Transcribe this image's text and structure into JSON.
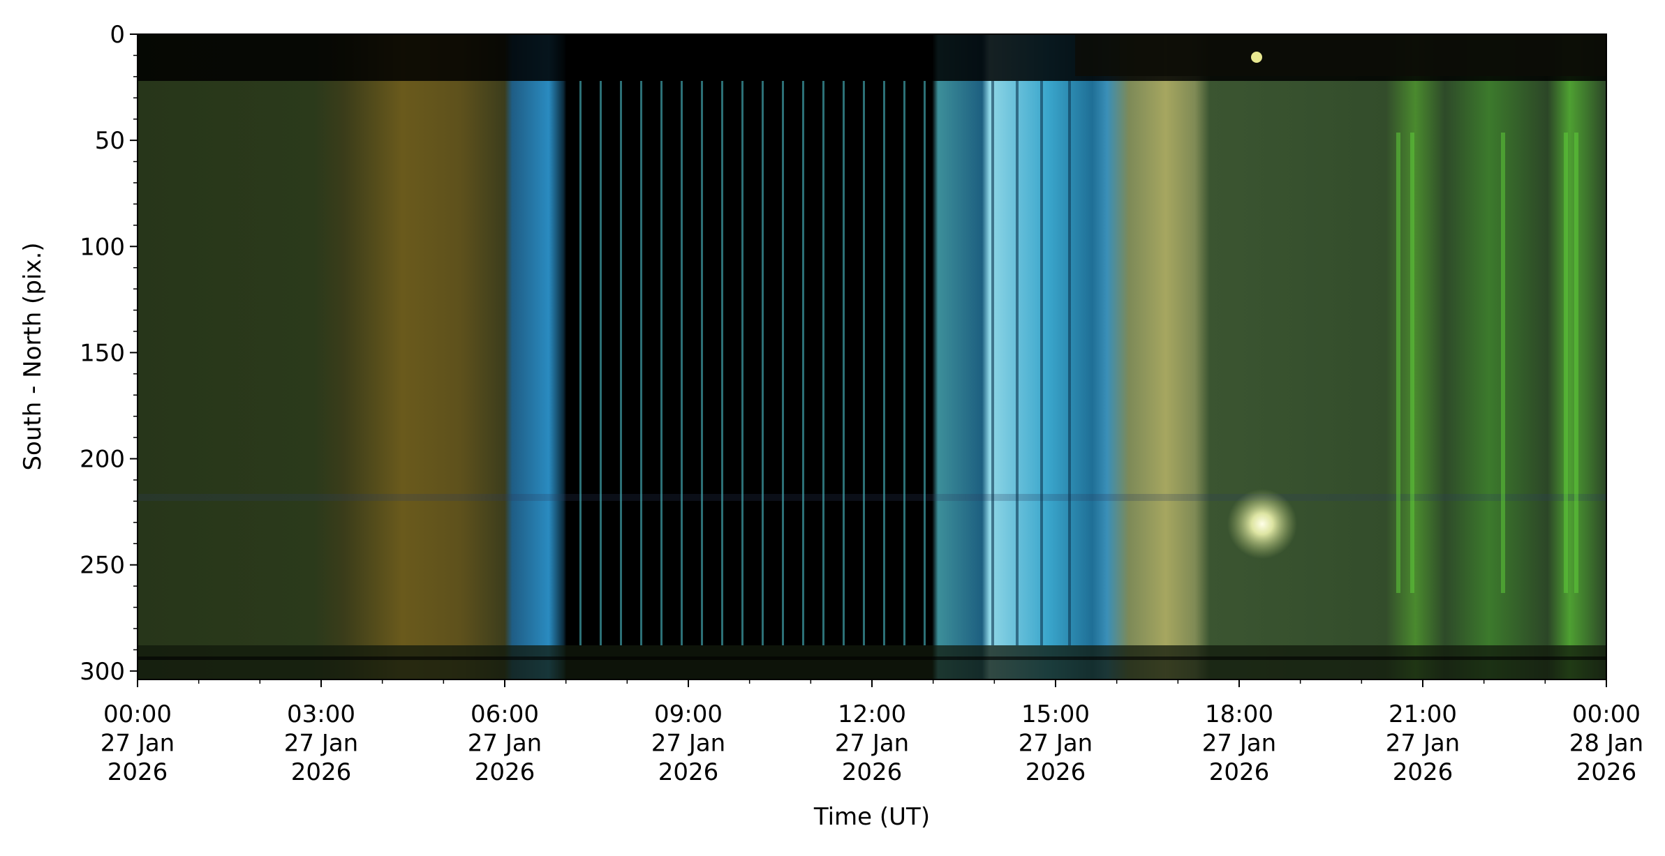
{
  "chart_data": {
    "type": "image",
    "xlabel": "Time (UT)",
    "ylabel": "South - North (pix.)",
    "xlim": [
      0,
      24
    ],
    "xticks": [
      {
        "value": 0,
        "label": "00:00\n27 Jan\n2026"
      },
      {
        "value": 3,
        "label": "03:00\n27 Jan\n2026"
      },
      {
        "value": 6,
        "label": "06:00\n27 Jan\n2026"
      },
      {
        "value": 9,
        "label": "09:00\n27 Jan\n2026"
      },
      {
        "value": 12,
        "label": "12:00\n27 Jan\n2026"
      },
      {
        "value": 15,
        "label": "15:00\n27 Jan\n2026"
      },
      {
        "value": 18,
        "label": "18:00\n27 Jan\n2026"
      },
      {
        "value": 21,
        "label": "21:00\n27 Jan\n2026"
      },
      {
        "value": 24,
        "label": "00:00\n28 Jan\n2026"
      }
    ],
    "xminorticks": [
      1,
      2,
      4,
      5,
      7,
      8,
      10,
      11,
      13,
      14,
      16,
      17,
      19,
      20,
      22,
      23
    ],
    "ylim": [
      304,
      0
    ],
    "yticks": [
      0,
      50,
      100,
      150,
      200,
      250,
      300
    ],
    "yminorticks": [
      10,
      20,
      30,
      40,
      60,
      70,
      80,
      90,
      110,
      120,
      130,
      140,
      160,
      170,
      180,
      190,
      210,
      220,
      230,
      240,
      260,
      270,
      280,
      290
    ]
  }
}
